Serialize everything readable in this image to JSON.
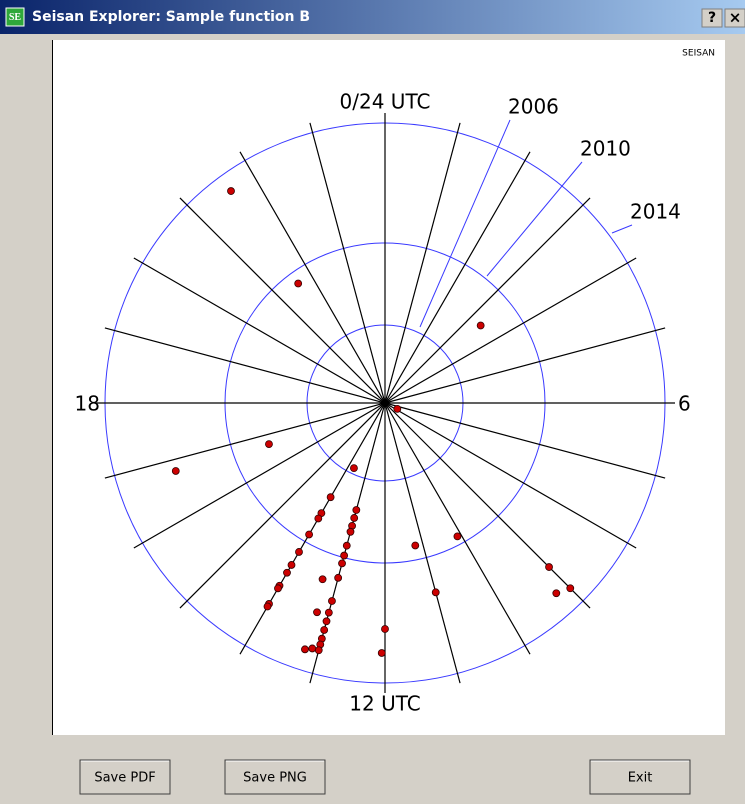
{
  "window": {
    "title": "Seisan Explorer: Sample function B",
    "icon": "SE",
    "help": "?",
    "close": "×"
  },
  "chart_data": {
    "type": "polar-scatter",
    "corner_label": "SEISAN",
    "xlim": [
      0,
      24
    ],
    "xticks": [
      0,
      1,
      2,
      3,
      4,
      5,
      6,
      7,
      8,
      9,
      10,
      11,
      12,
      13,
      14,
      15,
      16,
      17,
      18,
      19,
      20,
      21,
      22,
      23
    ],
    "angle_labels": [
      {
        "value": 0,
        "label": "0/24 UTC"
      },
      {
        "value": 6,
        "label": "6"
      },
      {
        "value": 12,
        "label": "12 UTC"
      },
      {
        "value": 18,
        "label": "18"
      }
    ],
    "ylim": [
      2002,
      2014
    ],
    "rings": [
      2006,
      2010,
      2014
    ],
    "ring_color": "#3a3aff",
    "spoke_color": "#000000",
    "color": "#cc0000",
    "x": [
      21.6,
      21.6,
      3.4,
      7.7,
      16.7,
      16.8,
      13.7,
      11.2,
      10.1,
      9.0,
      9.2,
      9.0,
      11.0,
      12.0,
      12.05,
      13,
      13,
      13,
      13,
      13,
      13,
      13,
      13,
      13,
      13,
      13,
      13,
      13,
      13,
      13,
      14,
      14,
      14,
      14,
      14,
      14,
      14,
      14,
      14,
      14,
      14,
      13.3,
      13.2,
      13.2,
      13.1
    ],
    "values": [
      2013.4,
      2009.4,
      2008.2,
      2002.7,
      2008.2,
      2012.0,
      2005.7,
      2009.3,
      2009.6,
      2012.4,
      2013.2,
      2013.4,
      2011.2,
      2012.2,
      2013.0,
      2007.6,
      2008.0,
      2008.4,
      2008.7,
      2009.4,
      2009.9,
      2010.2,
      2010.7,
      2011.5,
      2011.9,
      2012.2,
      2012.5,
      2012.8,
      2013.0,
      2013.2,
      2007.5,
      2008.4,
      2008.7,
      2009.6,
      2010.4,
      2010.9,
      2011.2,
      2011.7,
      2011.8,
      2012.4,
      2012.5,
      2010.9,
      2012.0,
      2013.3,
      2013.2
    ]
  },
  "buttons": [
    "Save PDF",
    "Save PNG",
    "Exit"
  ]
}
